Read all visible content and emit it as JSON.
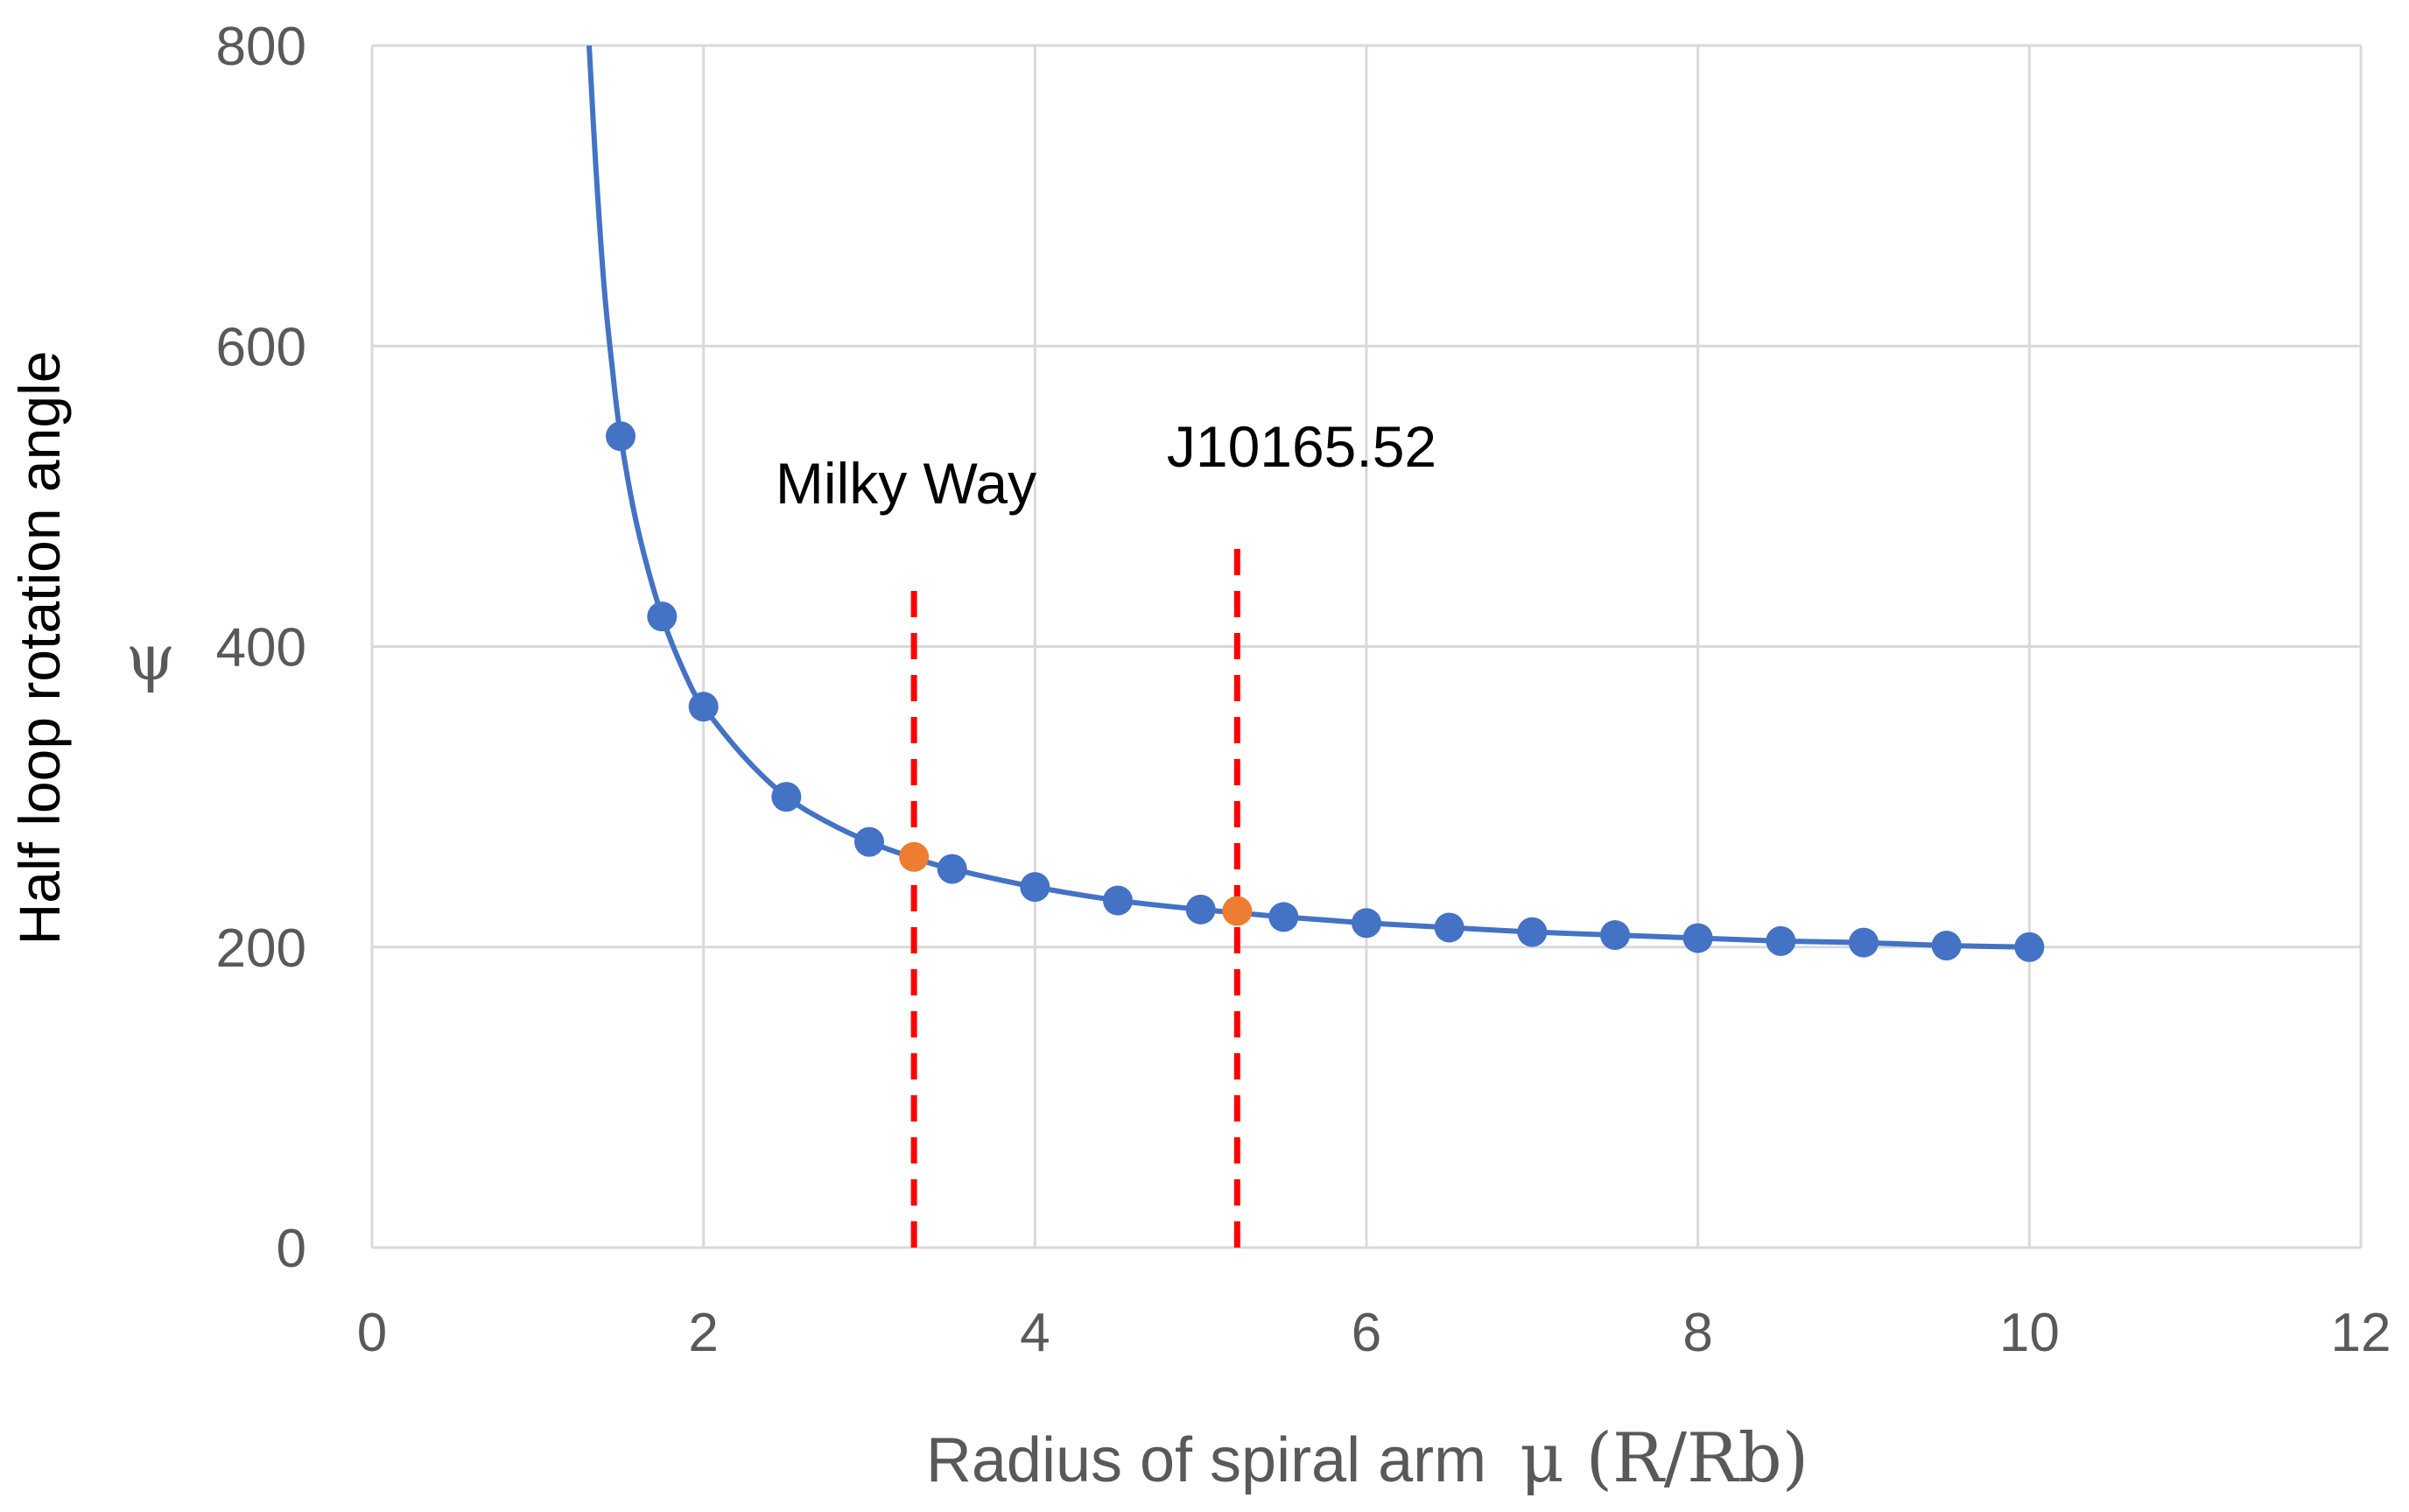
{
  "chart_data": {
    "type": "scatter",
    "title": "",
    "xlabel": "Radius of spiral arm",
    "xlabel_symbol": "μ (R/Rb)",
    "ylabel": "Half loop rotation angle",
    "ylabel_symbol": "ψ",
    "xlim": [
      0,
      12
    ],
    "ylim": [
      0,
      800
    ],
    "x_ticks": [
      0,
      2,
      4,
      6,
      8,
      10,
      12
    ],
    "y_ticks": [
      0,
      200,
      400,
      600,
      800
    ],
    "x_tick_labels": [
      "0",
      "2",
      "4",
      "6",
      "8",
      "10",
      "12"
    ],
    "y_tick_labels": [
      "0",
      "200",
      "400",
      "600",
      "800"
    ],
    "grid": true,
    "legend": "none",
    "series": [
      {
        "color": "#4472C4",
        "line": "smooth",
        "x": [
          1.5,
          1.75,
          2,
          2.5,
          3,
          3.5,
          4,
          4.5,
          5,
          5.5,
          6,
          6.5,
          7,
          7.5,
          8,
          8.5,
          9,
          9.5,
          10
        ],
        "y": [
          540,
          420,
          360,
          300,
          270,
          252,
          240,
          231,
          225,
          220,
          216,
          213,
          210,
          208,
          206,
          204,
          203,
          201,
          200
        ]
      }
    ],
    "curve": {
      "color": "#4472C4",
      "x": [
        1.31,
        1.35,
        1.4,
        1.45,
        1.5,
        1.6,
        1.75,
        1.9,
        2,
        2.25,
        2.5,
        2.75,
        3,
        3.25,
        3.5,
        4,
        4.5,
        5,
        5.5,
        6,
        6.5,
        7,
        7.5,
        8,
        8.5,
        9,
        9.5,
        10
      ],
      "y": [
        800,
        720,
        640,
        585,
        540,
        480,
        420,
        379,
        360,
        326,
        300,
        283,
        270,
        260,
        252,
        240,
        231,
        225,
        220,
        216,
        213,
        210,
        208,
        206,
        204,
        203,
        201,
        200
      ]
    },
    "highlights": [
      {
        "label": "Milky Way",
        "x": 3.27,
        "y": 260,
        "color": "#ED7D31"
      },
      {
        "label": "J10165.52",
        "x": 5.22,
        "y": 224,
        "color": "#ED7D31"
      }
    ],
    "markers": [
      {
        "label": "Milky Way",
        "x": 3.27,
        "y_range": [
          0,
          445
        ],
        "color": "#FF0000"
      },
      {
        "label": "J10165.52",
        "x": 5.22,
        "y_range": [
          0,
          465
        ],
        "color": "#FF0000"
      }
    ]
  }
}
